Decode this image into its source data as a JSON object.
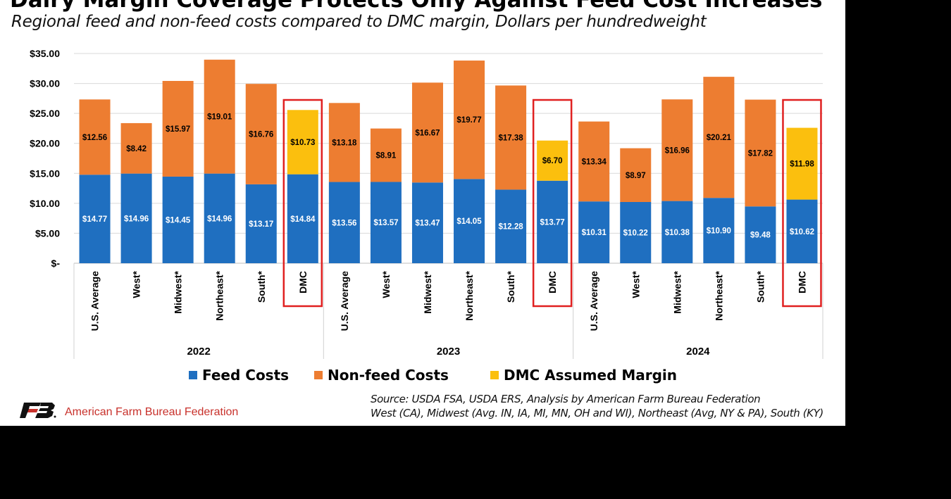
{
  "chart_data": {
    "type": "bar",
    "stacked": true,
    "title": "Dairy Margin Coverage Protects Only Against Feed Cost Increases",
    "subtitle": "Regional feed and non-feed costs compared to DMC margin, Dollars per hundredweight",
    "groups": [
      {
        "year": "2022",
        "categories": [
          "U.S. Average",
          "West*",
          "Midwest*",
          "Northeast*",
          "South*",
          "DMC"
        ],
        "feed": [
          14.77,
          14.96,
          14.45,
          14.96,
          13.17,
          14.84
        ],
        "upper": [
          12.56,
          8.42,
          15.97,
          19.01,
          16.76,
          10.73
        ]
      },
      {
        "year": "2023",
        "categories": [
          "U.S. Average",
          "West*",
          "Midwest*",
          "Northeast*",
          "South*",
          "DMC"
        ],
        "feed": [
          13.56,
          13.57,
          13.47,
          14.05,
          12.28,
          13.77
        ],
        "upper": [
          13.18,
          8.91,
          16.67,
          19.77,
          17.38,
          6.7
        ]
      },
      {
        "year": "2024",
        "categories": [
          "U.S. Average",
          "West*",
          "Midwest*",
          "Northeast*",
          "South*",
          "DMC"
        ],
        "feed": [
          10.31,
          10.22,
          10.38,
          10.9,
          9.48,
          10.62
        ],
        "upper": [
          13.34,
          8.97,
          16.96,
          20.21,
          17.82,
          11.98
        ]
      }
    ],
    "series": [
      {
        "name": "Feed Costs",
        "color": "#1f6fc0"
      },
      {
        "name": "Non-feed Costs",
        "color": "#ed7d31"
      },
      {
        "name": "DMC Assumed Margin",
        "color": "#fbbf0e"
      }
    ],
    "note": "Upper segment is Non-feed Costs for regional bars and DMC Assumed Margin for DMC bars",
    "yticks": [
      "$-",
      "$5.00",
      "$10.00",
      "$15.00",
      "$20.00",
      "$25.00",
      "$30.00",
      "$35.00"
    ],
    "ylim": [
      0,
      35
    ],
    "grid": true,
    "legend_position": "bottom",
    "highlight_color": "#e02020"
  },
  "footer": {
    "source_line1": "Source: USDA FSA, USDA ERS, Analysis by American Farm Bureau Federation",
    "source_line2": "West (CA), Midwest (Avg. IN, IA, MI, MN, OH and WI), Northeast (Avg, NY & PA), South (KY)",
    "logo_text": "American Farm Bureau Federation",
    "logo_mark": "FB"
  }
}
